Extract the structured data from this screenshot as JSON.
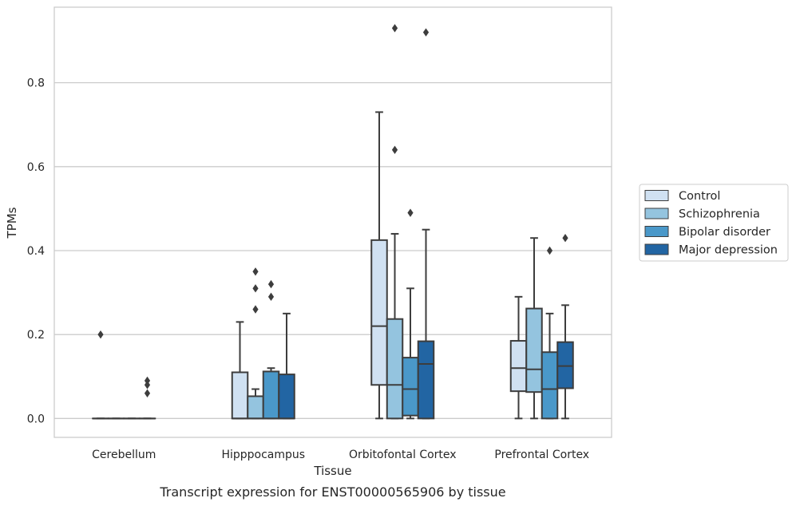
{
  "chart_data": {
    "type": "box",
    "xlabel": "Tissue",
    "ylabel": "TPMs",
    "caption": "Transcript expression for ENST00000565906 by tissue",
    "categories": [
      "Cerebellum",
      "Hipppocampus",
      "Orbitofontal Cortex",
      "Prefrontal Cortex"
    ],
    "ylim": [
      -0.045,
      0.98
    ],
    "yticks": [
      0.0,
      0.2,
      0.4,
      0.6,
      0.8
    ],
    "ytick_labels": [
      "0.0",
      "0.2",
      "0.4",
      "0.6",
      "0.8"
    ],
    "grid": "horizontal",
    "legend_position": "right",
    "series": [
      {
        "name": "Control",
        "color": "#d0e1f2",
        "boxes": [
          {
            "whislo": 0.0,
            "q1": 0.0,
            "med": 0.0,
            "q3": 0.0,
            "whishi": 0.0,
            "fliers": [
              0.2
            ]
          },
          {
            "whislo": 0.0,
            "q1": 0.0,
            "med": 0.0,
            "q3": 0.11,
            "whishi": 0.23,
            "fliers": []
          },
          {
            "whislo": 0.0,
            "q1": 0.08,
            "med": 0.22,
            "q3": 0.425,
            "whishi": 0.73,
            "fliers": []
          },
          {
            "whislo": 0.0,
            "q1": 0.065,
            "med": 0.12,
            "q3": 0.185,
            "whishi": 0.29,
            "fliers": []
          }
        ]
      },
      {
        "name": "Schizophrenia",
        "color": "#94c4df",
        "boxes": [
          {
            "whislo": 0.0,
            "q1": 0.0,
            "med": 0.0,
            "q3": 0.0,
            "whishi": 0.0,
            "fliers": []
          },
          {
            "whislo": 0.0,
            "q1": 0.0,
            "med": 0.0,
            "q3": 0.053,
            "whishi": 0.07,
            "fliers": [
              0.35,
              0.31,
              0.26
            ]
          },
          {
            "whislo": 0.0,
            "q1": 0.0,
            "med": 0.08,
            "q3": 0.237,
            "whishi": 0.44,
            "fliers": [
              0.93,
              0.64
            ]
          },
          {
            "whislo": 0.0,
            "q1": 0.063,
            "med": 0.117,
            "q3": 0.262,
            "whishi": 0.43,
            "fliers": []
          }
        ]
      },
      {
        "name": "Bipolar disorder",
        "color": "#4a98c9",
        "boxes": [
          {
            "whislo": 0.0,
            "q1": 0.0,
            "med": 0.0,
            "q3": 0.0,
            "whishi": 0.0,
            "fliers": []
          },
          {
            "whislo": 0.0,
            "q1": 0.0,
            "med": 0.0,
            "q3": 0.112,
            "whishi": 0.12,
            "fliers": [
              0.32,
              0.29
            ]
          },
          {
            "whislo": 0.0,
            "q1": 0.007,
            "med": 0.07,
            "q3": 0.145,
            "whishi": 0.31,
            "fliers": [
              0.49
            ]
          },
          {
            "whislo": 0.0,
            "q1": 0.0,
            "med": 0.07,
            "q3": 0.158,
            "whishi": 0.25,
            "fliers": [
              0.4
            ]
          }
        ]
      },
      {
        "name": "Major depression",
        "color": "#2265a3",
        "boxes": [
          {
            "whislo": 0.0,
            "q1": 0.0,
            "med": 0.0,
            "q3": 0.0,
            "whishi": 0.0,
            "fliers": [
              0.09,
              0.08,
              0.06
            ]
          },
          {
            "whislo": 0.0,
            "q1": 0.0,
            "med": 0.0,
            "q3": 0.105,
            "whishi": 0.25,
            "fliers": []
          },
          {
            "whislo": 0.0,
            "q1": 0.0,
            "med": 0.13,
            "q3": 0.184,
            "whishi": 0.45,
            "fliers": [
              0.92
            ]
          },
          {
            "whislo": 0.0,
            "q1": 0.072,
            "med": 0.125,
            "q3": 0.182,
            "whishi": 0.27,
            "fliers": [
              0.43
            ]
          }
        ]
      }
    ]
  }
}
